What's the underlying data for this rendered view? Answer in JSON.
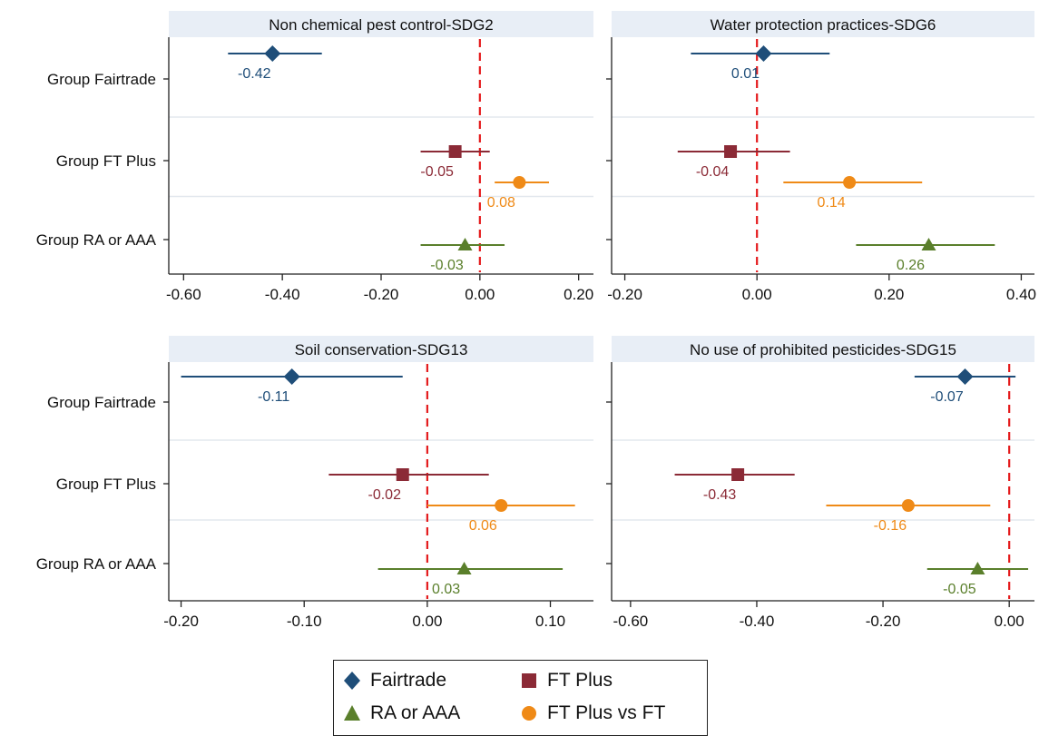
{
  "colors": {
    "Fairtrade": "#1f4e79",
    "FT Plus": "#8b2a36",
    "RA or AAA": "#5a7f2b",
    "FT Plus vs FT": "#ef8a17",
    "reference_line": "#e41a1c",
    "panel_header_bg": "#e8eef6"
  },
  "legend": {
    "items": [
      {
        "label": "Fairtrade",
        "marker": "diamond",
        "series": "Fairtrade"
      },
      {
        "label": "FT Plus",
        "marker": "square",
        "series": "FT Plus"
      },
      {
        "label": "RA or AAA",
        "marker": "triangle",
        "series": "RA or AAA"
      },
      {
        "label": "FT Plus vs FT",
        "marker": "circle",
        "series": "FT Plus vs FT"
      }
    ]
  },
  "chart_data": [
    {
      "type": "scatter",
      "title": "Non chemical pest control-SDG2",
      "groups": [
        "Group Fairtrade",
        "Group FT Plus",
        "Group RA or AAA"
      ],
      "xlim": [
        -0.63,
        0.23
      ],
      "xticks": [
        -0.6,
        -0.4,
        -0.2,
        0.0,
        0.2
      ],
      "reference_x": 0,
      "points": [
        {
          "series": "Fairtrade",
          "group": "Group Fairtrade",
          "estimate": -0.42,
          "ci": [
            -0.51,
            -0.32
          ],
          "label": "-0.42"
        },
        {
          "series": "FT Plus",
          "group": "Group FT Plus",
          "estimate": -0.05,
          "ci": [
            -0.12,
            0.02
          ],
          "label": "-0.05"
        },
        {
          "series": "FT Plus vs FT",
          "group": "Group FT Plus",
          "estimate": 0.08,
          "ci": [
            0.03,
            0.14
          ],
          "label": "0.08"
        },
        {
          "series": "RA or AAA",
          "group": "Group RA or AAA",
          "estimate": -0.03,
          "ci": [
            -0.12,
            0.05
          ],
          "label": "-0.03"
        }
      ]
    },
    {
      "type": "scatter",
      "title": "Water protection practices-SDG6",
      "groups": [
        "Group Fairtrade",
        "Group FT Plus",
        "Group RA or AAA"
      ],
      "xlim": [
        -0.22,
        0.42
      ],
      "xticks": [
        -0.2,
        0.0,
        0.2,
        0.4
      ],
      "reference_x": 0,
      "points": [
        {
          "series": "Fairtrade",
          "group": "Group Fairtrade",
          "estimate": 0.01,
          "ci": [
            -0.1,
            0.11
          ],
          "label": "0.01"
        },
        {
          "series": "FT Plus",
          "group": "Group FT Plus",
          "estimate": -0.04,
          "ci": [
            -0.12,
            0.05
          ],
          "label": "-0.04"
        },
        {
          "series": "FT Plus vs FT",
          "group": "Group FT Plus",
          "estimate": 0.14,
          "ci": [
            0.04,
            0.25
          ],
          "label": "0.14"
        },
        {
          "series": "RA or AAA",
          "group": "Group RA or AAA",
          "estimate": 0.26,
          "ci": [
            0.15,
            0.36
          ],
          "label": "0.26"
        }
      ]
    },
    {
      "type": "scatter",
      "title": "Soil conservation-SDG13",
      "groups": [
        "Group Fairtrade",
        "Group FT Plus",
        "Group RA or AAA"
      ],
      "xlim": [
        -0.21,
        0.135
      ],
      "xticks": [
        -0.2,
        -0.1,
        0.0,
        0.1
      ],
      "reference_x": 0,
      "points": [
        {
          "series": "Fairtrade",
          "group": "Group Fairtrade",
          "estimate": -0.11,
          "ci": [
            -0.2,
            -0.02
          ],
          "label": "-0.11"
        },
        {
          "series": "FT Plus",
          "group": "Group FT Plus",
          "estimate": -0.02,
          "ci": [
            -0.08,
            0.05
          ],
          "label": "-0.02"
        },
        {
          "series": "FT Plus vs FT",
          "group": "Group FT Plus",
          "estimate": 0.06,
          "ci": [
            0.0,
            0.12
          ],
          "label": "0.06"
        },
        {
          "series": "RA or AAA",
          "group": "Group RA or AAA",
          "estimate": 0.03,
          "ci": [
            -0.04,
            0.11
          ],
          "label": "0.03"
        }
      ]
    },
    {
      "type": "scatter",
      "title": "No use of prohibited pesticides-SDG15",
      "groups": [
        "Group Fairtrade",
        "Group FT Plus",
        "Group RA or AAA"
      ],
      "xlim": [
        -0.63,
        0.04
      ],
      "xticks": [
        -0.6,
        -0.4,
        -0.2,
        0.0
      ],
      "reference_x": 0,
      "points": [
        {
          "series": "Fairtrade",
          "group": "Group Fairtrade",
          "estimate": -0.07,
          "ci": [
            -0.15,
            0.01
          ],
          "label": "-0.07"
        },
        {
          "series": "FT Plus",
          "group": "Group FT Plus",
          "estimate": -0.43,
          "ci": [
            -0.53,
            -0.34
          ],
          "label": "-0.43"
        },
        {
          "series": "FT Plus vs FT",
          "group": "Group FT Plus",
          "estimate": -0.16,
          "ci": [
            -0.29,
            -0.03
          ],
          "label": "-0.16"
        },
        {
          "series": "RA or AAA",
          "group": "Group RA or AAA",
          "estimate": -0.05,
          "ci": [
            -0.13,
            0.03
          ],
          "label": "-0.05"
        }
      ]
    }
  ]
}
